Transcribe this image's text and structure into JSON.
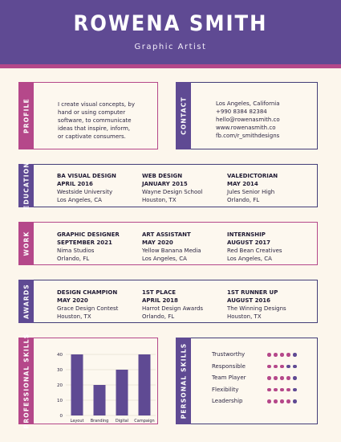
{
  "header": {
    "name": "ROWENA SMITH",
    "role": "Graphic Artist"
  },
  "colors": {
    "purple": "#5f4a93",
    "pink": "#b5488a",
    "background": "#fcf6ec",
    "bar": "#5f4a93"
  },
  "profile": {
    "tab": "PROFILE",
    "lines": [
      "I create visual concepts, by",
      "hand or using computer",
      "software, to communicate",
      "ideas that inspire, inform,",
      "or captivate consumers."
    ]
  },
  "contact": {
    "tab": "CONTACT",
    "lines": [
      "Los Angeles, California",
      "+990 8384 82384",
      "hello@rowenasmith.co",
      "www.rowenasmith.co",
      "fb.com/r_smithdesigns"
    ]
  },
  "education": {
    "tab": "EDUCATION",
    "items": [
      {
        "title": "BA VISUAL DESIGN",
        "date": "APRIL 2016",
        "place": "Westside University",
        "location": "Los Angeles, CA"
      },
      {
        "title": "WEB DESIGN",
        "date": "JANUARY 2015",
        "place": "Wayne Design School",
        "location": "Houston, TX"
      },
      {
        "title": "VALEDICTORIAN",
        "date": "MAY 2014",
        "place": "Jules Senior High",
        "location": "Orlando, FL"
      }
    ]
  },
  "work": {
    "tab": "WORK",
    "items": [
      {
        "title": "GRAPHIC DESIGNER",
        "date": "SEPTEMBER 2021",
        "place": "Nima Studios",
        "location": "Orlando, FL"
      },
      {
        "title": "ART ASSISTANT",
        "date": "MAY 2020",
        "place": "Yellow Banana Media",
        "location": "Los Angeles, CA"
      },
      {
        "title": "INTERNSHIP",
        "date": "AUGUST 2017",
        "place": "Red Bean Creatives",
        "location": "Los Angeles, CA"
      }
    ]
  },
  "awards": {
    "tab": "AWARDS",
    "items": [
      {
        "title": "DESIGN CHAMPION",
        "date": "MAY 2020",
        "place": "Grace Design Contest",
        "location": "Houston, TX"
      },
      {
        "title": "1ST PLACE",
        "date": "APRIL 2018",
        "place": "Harrot Design Awards",
        "location": "Orlando, FL"
      },
      {
        "title": "1ST RUNNER UP",
        "date": "AUGUST 2016",
        "place": "The Winning Designs",
        "location": "Houston, TX"
      }
    ]
  },
  "professional_skills": {
    "tab": "PROFESSIONAL SKILLS"
  },
  "chart_data": {
    "type": "bar",
    "categories": [
      "Layout",
      "Branding",
      "Digital",
      "Campaign"
    ],
    "values": [
      40,
      20,
      30,
      40
    ],
    "ylim": [
      0,
      40
    ],
    "yticks": [
      0,
      10,
      20,
      30,
      40
    ],
    "grid": true,
    "title": "",
    "xlabel": "",
    "ylabel": ""
  },
  "personal_skills": {
    "tab": "PERSONAL SKILLS",
    "dot_max": 5,
    "items": [
      {
        "name": "Trustworthy",
        "level": 4
      },
      {
        "name": "Responsible",
        "level": 3
      },
      {
        "name": "Team Player",
        "level": 4
      },
      {
        "name": "Flexibility",
        "level": 4
      },
      {
        "name": "Leadership",
        "level": 4
      }
    ]
  }
}
